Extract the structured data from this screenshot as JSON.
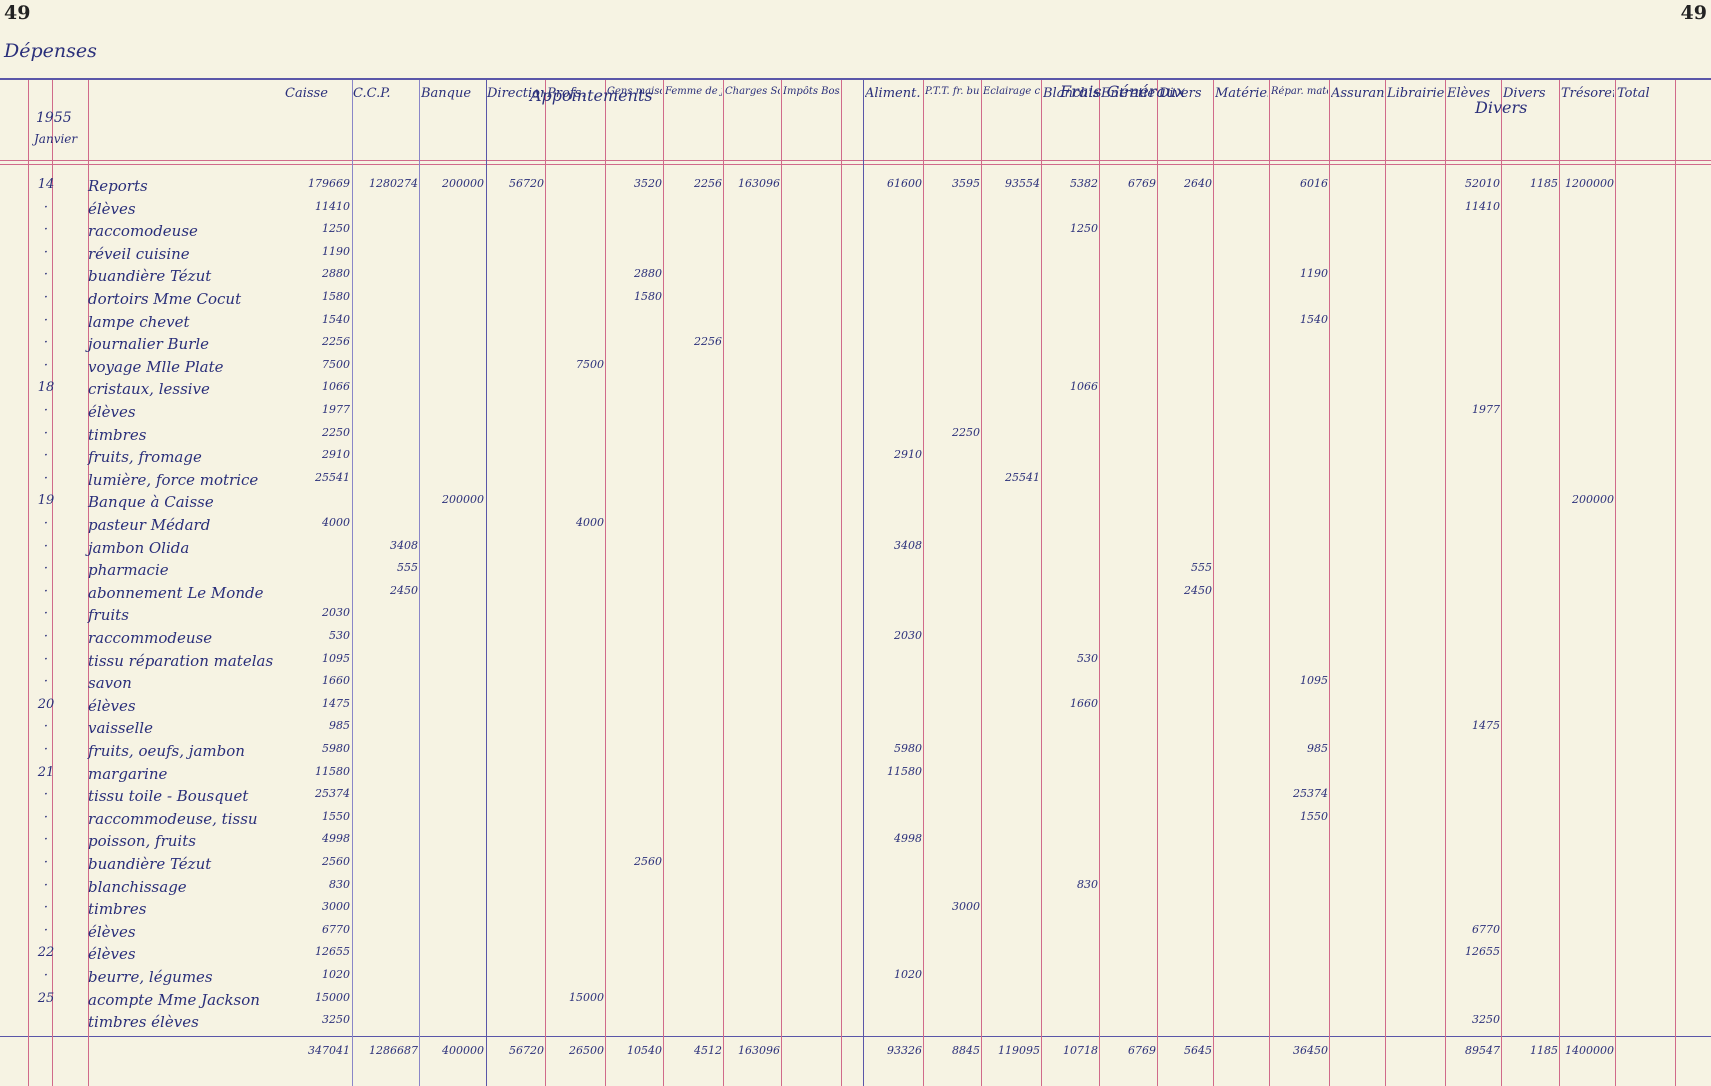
{
  "page_number_left": "49",
  "page_number_right": "49",
  "section_title": "Dépenses",
  "groups": [
    {
      "key": "appointements",
      "label": "Appointements"
    },
    {
      "key": "frais_generaux",
      "label": "Frais Généraux"
    },
    {
      "key": "divers",
      "label": "Divers"
    }
  ],
  "date_header": {
    "year": "1955",
    "month": "Janvier"
  },
  "columns": [
    {
      "key": "caisse",
      "label": "Caisse"
    },
    {
      "key": "ccp",
      "label": "C.C.P."
    },
    {
      "key": "banque",
      "label": "Banque"
    },
    {
      "key": "direction",
      "label": "Direction"
    },
    {
      "key": "profs",
      "label": "Profs."
    },
    {
      "key": "gens_maison",
      "label": "Gens maison"
    },
    {
      "key": "femme_journee",
      "label": "Femme de journée"
    },
    {
      "key": "charges_sociales",
      "label": "Charges Sociales"
    },
    {
      "key": "impots",
      "label": "Impôts Bossuang"
    },
    {
      "key": "aliment",
      "label": "Aliment."
    },
    {
      "key": "ptt",
      "label": "P.T.T. fr. bureau"
    },
    {
      "key": "eclairage",
      "label": "Eclairage chauff."
    },
    {
      "key": "blanchiss",
      "label": "Blanchiss."
    },
    {
      "key": "entretien",
      "label": "Entretien"
    },
    {
      "key": "divers_fg",
      "label": "Divers"
    },
    {
      "key": "materiel",
      "label": "Matériel"
    },
    {
      "key": "repar_materiel",
      "label": "Répar. matériel"
    },
    {
      "key": "assurance",
      "label": "Assurance"
    },
    {
      "key": "librairie",
      "label": "Librairie"
    },
    {
      "key": "eleves",
      "label": "Elèves"
    },
    {
      "key": "divers2",
      "label": "Divers"
    },
    {
      "key": "tresorerie",
      "label": "Trésorerie"
    },
    {
      "key": "total",
      "label": "Total"
    }
  ],
  "rows": [
    {
      "day": "14",
      "desc": "Reports",
      "caisse": "179669",
      "ccp": "1280274",
      "banque": "200000",
      "direction": "56720",
      "gens_maison": "3520",
      "femme_journee": "2256",
      "charges_sociales": "163096",
      "aliment": "61600",
      "ptt": "3595",
      "eclairage": "93554",
      "blanchiss": "5382",
      "entretien": "6769",
      "divers_fg": "2640",
      "repar_materiel": "6016",
      "eleves": "52010",
      "divers2": "1185",
      "tresorerie": "1200000"
    },
    {
      "day": "·",
      "desc": "élèves",
      "caisse": "11410",
      "eleves": "11410"
    },
    {
      "day": "·",
      "desc": "raccomodeuse",
      "caisse": "1250",
      "blanchiss": "1250"
    },
    {
      "day": "·",
      "desc": "réveil cuisine",
      "caisse": "1190"
    },
    {
      "day": "·",
      "desc": "buandière Tézut",
      "caisse": "2880",
      "gens_maison": "2880",
      "repar_materiel": "1190"
    },
    {
      "day": "·",
      "desc": "dortoirs Mme Cocut",
      "caisse": "1580",
      "gens_maison": "1580"
    },
    {
      "day": "·",
      "desc": "lampe chevet",
      "caisse": "1540",
      "repar_materiel": "1540"
    },
    {
      "day": "·",
      "desc": "journalier Burle",
      "caisse": "2256",
      "femme_journee": "2256"
    },
    {
      "day": "·",
      "desc": "voyage Mlle Plate",
      "caisse": "7500",
      "profs": "7500"
    },
    {
      "day": "18",
      "desc": "cristaux, lessive",
      "caisse": "1066",
      "blanchiss": "1066"
    },
    {
      "day": "·",
      "desc": "élèves",
      "caisse": "1977",
      "eleves": "1977"
    },
    {
      "day": "·",
      "desc": "timbres",
      "caisse": "2250",
      "ptt": "2250"
    },
    {
      "day": "·",
      "desc": "fruits, fromage",
      "caisse": "2910",
      "aliment": "2910"
    },
    {
      "day": "·",
      "desc": "lumière, force motrice",
      "caisse": "25541",
      "eclairage": "25541"
    },
    {
      "day": "19",
      "desc": "Banque à Caisse",
      "banque": "200000",
      "tresorerie": "200000"
    },
    {
      "day": "·",
      "desc": "pasteur Médard",
      "caisse": "4000",
      "profs": "4000"
    },
    {
      "day": "·",
      "desc": "jambon Olida",
      "ccp": "3408",
      "aliment": "3408"
    },
    {
      "day": "·",
      "desc": "pharmacie",
      "ccp": "555",
      "divers_fg": "555"
    },
    {
      "day": "·",
      "desc": "abonnement Le Monde",
      "ccp": "2450",
      "divers_fg": "2450"
    },
    {
      "day": "·",
      "desc": "fruits",
      "caisse": "2030"
    },
    {
      "day": "·",
      "desc": "raccommodeuse",
      "caisse": "530",
      "aliment": "2030"
    },
    {
      "day": "·",
      "desc": "tissu réparation matelas",
      "caisse": "1095",
      "blanchiss": "530"
    },
    {
      "day": "·",
      "desc": "savon",
      "caisse": "1660",
      "repar_materiel": "1095"
    },
    {
      "day": "20",
      "desc": "élèves",
      "caisse": "1475",
      "blanchiss": "1660"
    },
    {
      "day": "·",
      "desc": "vaisselle",
      "caisse": "985",
      "eleves": "1475"
    },
    {
      "day": "·",
      "desc": "fruits, oeufs, jambon",
      "caisse": "5980",
      "aliment": "5980",
      "repar_materiel": "985"
    },
    {
      "day": "21",
      "desc": "margarine",
      "caisse": "11580",
      "aliment": "11580"
    },
    {
      "day": "·",
      "desc": "tissu toile - Bousquet",
      "caisse": "25374",
      "repar_materiel": "25374"
    },
    {
      "day": "·",
      "desc": "raccommodeuse, tissu",
      "caisse": "1550",
      "repar_materiel": "1550"
    },
    {
      "day": "·",
      "desc": "poisson, fruits",
      "caisse": "4998",
      "aliment": "4998"
    },
    {
      "day": "·",
      "desc": "buandière Tézut",
      "caisse": "2560",
      "gens_maison": "2560"
    },
    {
      "day": "·",
      "desc": "blanchissage",
      "caisse": "830",
      "blanchiss": "830"
    },
    {
      "day": "·",
      "desc": "timbres",
      "caisse": "3000",
      "ptt": "3000"
    },
    {
      "day": "·",
      "desc": "élèves",
      "caisse": "6770",
      "eleves": "6770"
    },
    {
      "day": "22",
      "desc": "élèves",
      "caisse": "12655",
      "eleves": "12655"
    },
    {
      "day": "·",
      "desc": "beurre, légumes",
      "caisse": "1020",
      "aliment": "1020"
    },
    {
      "day": "25",
      "desc": "acompte Mme Jackson",
      "caisse": "15000",
      "profs": "15000"
    },
    {
      "day": "",
      "desc": "timbres élèves",
      "caisse": "3250",
      "eleves": "3250"
    }
  ],
  "totals": {
    "caisse": "347041",
    "ccp": "1286687",
    "banque": "400000",
    "direction": "56720",
    "profs": "26500",
    "gens_maison": "10540",
    "femme_journee": "4512",
    "charges_sociales": "163096",
    "aliment": "93326",
    "ptt": "8845",
    "eclairage": "119095",
    "blanchiss": "10718",
    "entretien": "6769",
    "divers_fg": "5645",
    "repar_materiel": "36450",
    "eleves": "89547",
    "divers2": "1185",
    "tresorerie": "1400000"
  }
}
